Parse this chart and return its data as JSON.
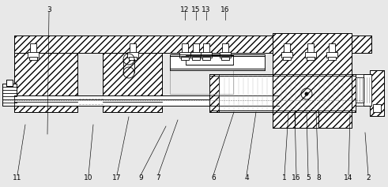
{
  "bg_color": "#e8e8e8",
  "figsize": [
    4.91,
    2.37
  ],
  "dpi": 100,
  "labels_top": [
    [
      "11",
      22,
      225,
      32,
      158
    ],
    [
      "10",
      112,
      225,
      118,
      158
    ],
    [
      "17",
      148,
      225,
      163,
      148
    ],
    [
      "9",
      178,
      225,
      210,
      160
    ],
    [
      "7",
      200,
      225,
      225,
      152
    ],
    [
      "6",
      270,
      225,
      296,
      142
    ],
    [
      "4",
      312,
      225,
      324,
      142
    ],
    [
      "1",
      360,
      225,
      365,
      142
    ],
    [
      "16",
      375,
      225,
      373,
      142
    ],
    [
      "5",
      390,
      225,
      388,
      142
    ],
    [
      "8",
      403,
      225,
      400,
      142
    ],
    [
      "14",
      441,
      225,
      443,
      145
    ],
    [
      "2",
      466,
      225,
      462,
      168
    ]
  ],
  "labels_bot": [
    [
      "3",
      62,
      12,
      60,
      170
    ],
    [
      "12",
      234,
      12,
      234,
      25
    ],
    [
      "15",
      248,
      12,
      248,
      25
    ],
    [
      "13",
      261,
      12,
      261,
      25
    ],
    [
      "16",
      285,
      12,
      285,
      25
    ]
  ]
}
